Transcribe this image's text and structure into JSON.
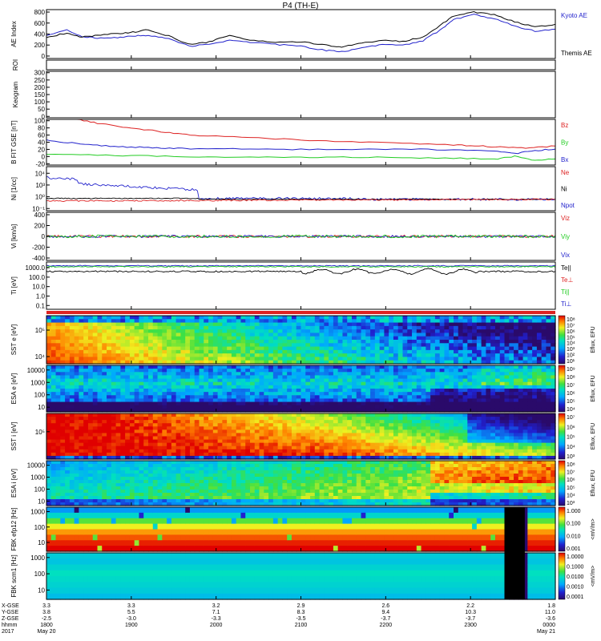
{
  "title": "P4 (TH-E)",
  "colors": {
    "red": "#dd2222",
    "green": "#22cc22",
    "blue": "#2222cc",
    "black": "#000000"
  },
  "chart_data": [
    {
      "type": "line",
      "panel": "ae",
      "ylabel": "AE Index",
      "ylim": [
        0,
        800
      ],
      "yticks": [
        "800",
        "600",
        "400",
        "200",
        "0"
      ],
      "xlim": [
        0,
        1
      ],
      "series": [
        {
          "name": "Kyoto AE",
          "color": "#2222cc",
          "x": [
            0,
            0.04,
            0.07,
            0.1,
            0.14,
            0.17,
            0.2,
            0.24,
            0.28,
            0.32,
            0.36,
            0.4,
            0.45,
            0.5,
            0.55,
            0.58,
            0.62,
            0.66,
            0.7,
            0.74,
            0.78,
            0.8,
            0.84,
            0.88,
            0.92,
            0.96,
            1
          ],
          "y": [
            380,
            470,
            360,
            330,
            340,
            370,
            380,
            330,
            200,
            230,
            300,
            270,
            230,
            200,
            130,
            110,
            170,
            230,
            220,
            290,
            500,
            640,
            720,
            650,
            530,
            450,
            480
          ]
        },
        {
          "name": "Themis AE",
          "color": "#000000",
          "x": [
            0,
            0.04,
            0.07,
            0.1,
            0.14,
            0.17,
            0.2,
            0.24,
            0.28,
            0.32,
            0.36,
            0.4,
            0.45,
            0.5,
            0.55,
            0.58,
            0.62,
            0.66,
            0.7,
            0.74,
            0.78,
            0.8,
            0.84,
            0.88,
            0.92,
            0.96,
            1
          ],
          "y": [
            340,
            420,
            350,
            380,
            410,
            430,
            470,
            370,
            230,
            270,
            380,
            300,
            260,
            270,
            220,
            190,
            250,
            300,
            280,
            350,
            580,
            700,
            760,
            720,
            600,
            520,
            560
          ]
        }
      ]
    },
    {
      "type": "heatmap",
      "panel": "roi",
      "ylabel": "ROI"
    },
    {
      "type": "heatmap",
      "panel": "keogram",
      "ylabel": "Keogram",
      "yticks": [
        "300",
        "250",
        "200",
        "150",
        "100",
        "50",
        "0"
      ]
    },
    {
      "type": "line",
      "panel": "bfield",
      "ylabel": "B FIT GSE [nT]",
      "ylim": [
        -20,
        100
      ],
      "yticks": [
        "100",
        "80",
        "60",
        "40",
        "20",
        "0",
        "-20"
      ],
      "xlim": [
        0,
        1
      ],
      "series": [
        {
          "name": "Bz",
          "color": "#dd2222",
          "x": [
            0.06,
            0.1,
            0.15,
            0.2,
            0.25,
            0.3,
            0.4,
            0.5,
            0.6,
            0.7,
            0.8,
            0.85,
            0.9,
            0.95,
            1
          ],
          "y": [
            100,
            90,
            80,
            72,
            63,
            58,
            52,
            46,
            41,
            37,
            33,
            30,
            27,
            25,
            30
          ]
        },
        {
          "name": "By",
          "color": "#22cc22",
          "x": [
            0,
            0.1,
            0.2,
            0.3,
            0.4,
            0.5,
            0.6,
            0.7,
            0.8,
            0.88,
            0.92,
            0.96,
            1
          ],
          "y": [
            8,
            6,
            4,
            2,
            1,
            0,
            1,
            0,
            -2,
            -5,
            3,
            -8,
            -4
          ]
        },
        {
          "name": "Bx",
          "color": "#2222cc",
          "x": [
            0,
            0.05,
            0.1,
            0.15,
            0.2,
            0.25,
            0.3,
            0.4,
            0.5,
            0.6,
            0.7,
            0.8,
            0.88,
            0.92,
            0.96,
            1
          ],
          "y": [
            45,
            38,
            32,
            28,
            26,
            24,
            23,
            22,
            21,
            21,
            22,
            20,
            16,
            10,
            18,
            22
          ]
        }
      ]
    },
    {
      "type": "line",
      "panel": "density",
      "ylabel": "Ni [1/cc]",
      "yticks": [
        "10⁴",
        "10³",
        "10⁰",
        "10⁻¹"
      ],
      "series": [
        {
          "name": "Ne",
          "color": "#dd2222"
        },
        {
          "name": "Ni",
          "color": "#000000"
        },
        {
          "name": "Npot",
          "color": "#2222cc"
        }
      ]
    },
    {
      "type": "line",
      "panel": "velocity",
      "ylabel": "Vi [km/s]",
      "ylim": [
        -400,
        400
      ],
      "yticks": [
        "400",
        "200",
        "0",
        "-200",
        "-400"
      ],
      "series": [
        {
          "name": "Viz",
          "color": "#dd2222"
        },
        {
          "name": "Viy",
          "color": "#22cc22"
        },
        {
          "name": "Vix",
          "color": "#2222cc"
        }
      ]
    },
    {
      "type": "line",
      "panel": "temperature",
      "ylabel": "Ti [eV]",
      "yticks": [
        "1000.0",
        "100.0",
        "10.0",
        "1.0",
        "0.1"
      ],
      "series": [
        {
          "name": "Te||",
          "color": "#000000"
        },
        {
          "name": "Te⊥",
          "color": "#dd2222"
        },
        {
          "name": "Ti||",
          "color": "#22cc22"
        },
        {
          "name": "Ti⊥",
          "color": "#2222cc"
        }
      ]
    },
    {
      "type": "heatmap",
      "panel": "sst_e",
      "ylabel": "SST e [eV]",
      "yticks": [
        "10⁵",
        "10⁴"
      ],
      "colorbar_label": "Eflux, EFU",
      "colorbar_ticks": [
        "10⁸",
        "10⁷",
        "10⁶",
        "10⁵",
        "10⁴",
        "10³",
        "10²",
        "10¹"
      ]
    },
    {
      "type": "heatmap",
      "panel": "esa_e",
      "ylabel": "ESA e [eV]",
      "yticks": [
        "10000",
        "1000",
        "100",
        "10"
      ],
      "colorbar_label": "Eflux, EFU",
      "colorbar_ticks": [
        "10⁹",
        "10⁸",
        "10⁷",
        "10⁶",
        "10⁵",
        "10⁴"
      ]
    },
    {
      "type": "heatmap",
      "panel": "sst_i",
      "ylabel": "SST i [eV]",
      "yticks": [
        "10⁵"
      ],
      "colorbar_label": "Eflux, EFU",
      "colorbar_ticks": [
        "10⁷",
        "10⁶",
        "10⁵",
        "10⁴",
        "10³"
      ]
    },
    {
      "type": "heatmap",
      "panel": "esa_i",
      "ylabel": "ESA i [eV]",
      "yticks": [
        "10000",
        "1000",
        "100",
        "10"
      ],
      "colorbar_label": "Eflux, EFU",
      "colorbar_ticks": [
        "10⁸",
        "10⁷",
        "10⁶",
        "10⁵",
        "10⁴",
        "10³"
      ]
    },
    {
      "type": "heatmap",
      "panel": "fbk_e",
      "ylabel": "FBK efp12 [Hz]",
      "yticks": [
        "1000",
        "100",
        "10"
      ],
      "colorbar_label": "<mV/m>",
      "colorbar_ticks": [
        "1.000",
        "0.100",
        "0.010",
        "0.001"
      ]
    },
    {
      "type": "heatmap",
      "panel": "fbk_b",
      "ylabel": "FBK scm1 [Hz]",
      "yticks": [
        "1000",
        "100",
        "10"
      ],
      "colorbar_label": "<mV/m>",
      "colorbar_ticks": [
        "1.0000",
        "0.1000",
        "0.0100",
        "0.0010",
        "0.0001"
      ]
    }
  ],
  "xaxis": {
    "row_labels": [
      "X-GSE",
      "Y-GSE",
      "Z-GSE",
      "hhmm",
      "2017"
    ],
    "columns": [
      [
        "3.3",
        "3.8",
        "-2.5",
        "1800",
        "May 20"
      ],
      [
        "3.3",
        "5.5",
        "-3.0",
        "1900",
        ""
      ],
      [
        "3.2",
        "7.1",
        "-3.3",
        "2000",
        ""
      ],
      [
        "2.9",
        "8.3",
        "-3.5",
        "2100",
        ""
      ],
      [
        "2.6",
        "9.4",
        "-3.7",
        "2200",
        ""
      ],
      [
        "2.2",
        "10.3",
        "-3.7",
        "2300",
        ""
      ],
      [
        "1.8",
        "11.0",
        "-3.6",
        "0000",
        "May 21"
      ]
    ]
  }
}
